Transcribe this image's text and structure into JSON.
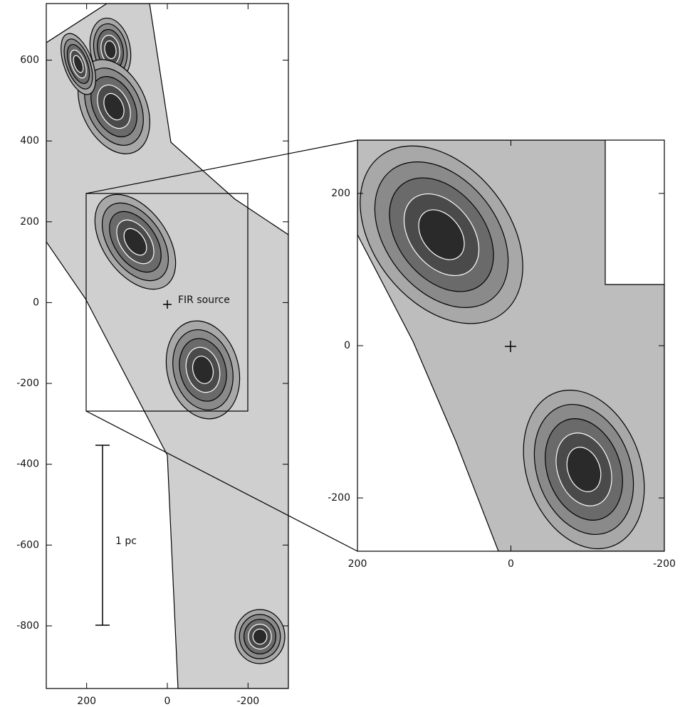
{
  "chart_data": [
    {
      "type": "contour",
      "xlim": [
        300,
        -300
      ],
      "ylim": [
        -955,
        740
      ],
      "xticks": [
        200,
        0,
        -200
      ],
      "yticks": [
        600,
        400,
        200,
        0,
        -200,
        -400,
        -600,
        -800
      ],
      "annotations": [
        "FIR source",
        "1 pc"
      ]
    },
    {
      "type": "contour",
      "xlim": [
        200,
        -200
      ],
      "ylim": [
        -270,
        270
      ],
      "xticks": [
        200,
        0,
        -200
      ],
      "yticks": [
        200,
        0,
        -200
      ]
    }
  ]
}
